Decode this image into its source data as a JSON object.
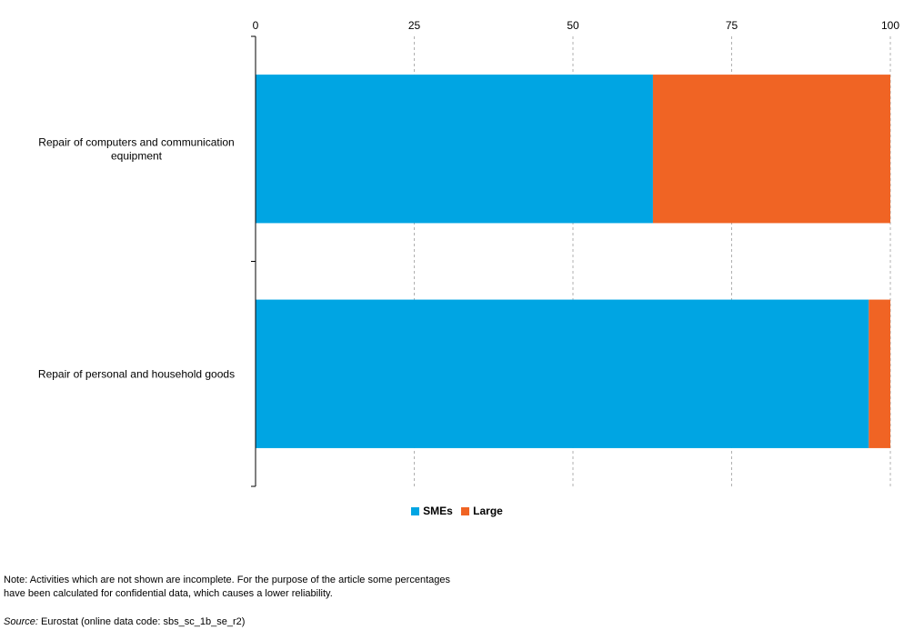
{
  "chart_data": {
    "type": "bar",
    "orientation": "horizontal",
    "stacked": true,
    "categories": [
      "Repair of computers and communication equipment",
      "Repair of personal and household goods"
    ],
    "series": [
      {
        "name": "SMEs",
        "values": [
          62.6,
          96.6
        ],
        "color": "#00a5e3"
      },
      {
        "name": "Large",
        "values": [
          37.4,
          3.4
        ],
        "color": "#f06424"
      }
    ],
    "xlim": [
      0,
      100
    ],
    "xticks": [
      0,
      25,
      50,
      75,
      100
    ],
    "x_axis_position": "top",
    "grid": "vertical dashed",
    "legend_position": "bottom-center"
  },
  "note": {
    "line1": "Note: Activities which are not shown are incomplete. For the purpose of the article some percentages",
    "line2": "have been calculated for confidential data, which causes a lower reliability."
  },
  "source": {
    "label": "Source:",
    "text": "Eurostat (online data code: sbs_sc_1b_se_r2)"
  }
}
